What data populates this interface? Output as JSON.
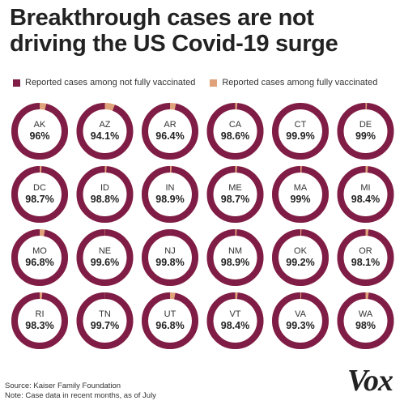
{
  "header": {
    "title_line1": "Breakthrough cases are not",
    "title_line2": "driving the US Covid-19 surge"
  },
  "legend": {
    "not_fully_vaccinated": "Reported cases among not fully vaccinated",
    "fully_vaccinated": "Reported cases among fully vaccinated"
  },
  "colors": {
    "not_fully_vaccinated": "#7f1d47",
    "fully_vaccinated": "#e0a27a"
  },
  "chart_data": {
    "type": "pie",
    "variant": "donut-grid",
    "unit": "percent of reported cases among not fully vaccinated",
    "series": [
      {
        "name": "Reported cases among not fully vaccinated"
      },
      {
        "name": "Reported cases among fully vaccinated"
      }
    ],
    "states": [
      {
        "code": "AK",
        "label": "96%",
        "value": 96.0
      },
      {
        "code": "AZ",
        "label": "94.1%",
        "value": 94.1
      },
      {
        "code": "AR",
        "label": "96.4%",
        "value": 96.4
      },
      {
        "code": "CA",
        "label": "98.6%",
        "value": 98.6
      },
      {
        "code": "CT",
        "label": "99.9%",
        "value": 99.9
      },
      {
        "code": "DE",
        "label": "99%",
        "value": 99.0
      },
      {
        "code": "DC",
        "label": "98.7%",
        "value": 98.7
      },
      {
        "code": "ID",
        "label": "98.8%",
        "value": 98.8
      },
      {
        "code": "IN",
        "label": "98.9%",
        "value": 98.9
      },
      {
        "code": "ME",
        "label": "98.7%",
        "value": 98.7
      },
      {
        "code": "MA",
        "label": "99%",
        "value": 99.0
      },
      {
        "code": "MI",
        "label": "98.4%",
        "value": 98.4
      },
      {
        "code": "MO",
        "label": "96.8%",
        "value": 96.8
      },
      {
        "code": "NE",
        "label": "99.6%",
        "value": 99.6
      },
      {
        "code": "NJ",
        "label": "99.8%",
        "value": 99.8
      },
      {
        "code": "NM",
        "label": "98.9%",
        "value": 98.9
      },
      {
        "code": "OK",
        "label": "99.2%",
        "value": 99.2
      },
      {
        "code": "OR",
        "label": "98.1%",
        "value": 98.1
      },
      {
        "code": "RI",
        "label": "98.3%",
        "value": 98.3
      },
      {
        "code": "TN",
        "label": "99.7%",
        "value": 99.7
      },
      {
        "code": "UT",
        "label": "96.8%",
        "value": 96.8
      },
      {
        "code": "VT",
        "label": "98.4%",
        "value": 98.4
      },
      {
        "code": "VA",
        "label": "99.3%",
        "value": 99.3
      },
      {
        "code": "WA",
        "label": "98%",
        "value": 98.0
      }
    ]
  },
  "footer": {
    "source": "Source: Kaiser Family Foundation",
    "note": "Note: Case data in recent months, as of July"
  },
  "logo": {
    "text": "Vox"
  }
}
